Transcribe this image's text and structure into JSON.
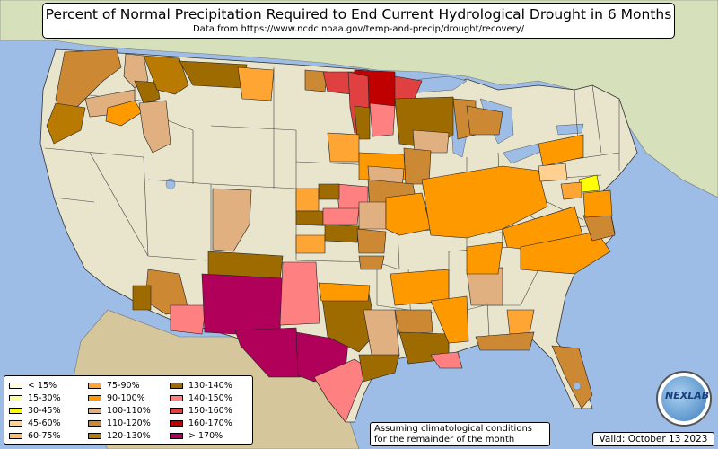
{
  "title": "Percent of Normal Precipitation Required to End Current Hydrological Drought in 6 Months",
  "subtitle": "Data from https://www.ncdc.noaa.gov/temp-and-precip/drought/recovery/",
  "legend": [
    {
      "label": "< 15%",
      "color": "#ffffe0"
    },
    {
      "label": "15-30%",
      "color": "#ffffa0"
    },
    {
      "label": "30-45%",
      "color": "#ffff00"
    },
    {
      "label": "45-60%",
      "color": "#ffd090"
    },
    {
      "label": "60-75%",
      "color": "#ffbf66"
    },
    {
      "label": "75-90%",
      "color": "#ffa533"
    },
    {
      "label": "90-100%",
      "color": "#ff9900"
    },
    {
      "label": "100-110%",
      "color": "#e0b080"
    },
    {
      "label": "110-120%",
      "color": "#cc8833"
    },
    {
      "label": "120-130%",
      "color": "#b87a00"
    },
    {
      "label": "130-140%",
      "color": "#9e6b00"
    },
    {
      "label": "140-150%",
      "color": "#ff8080"
    },
    {
      "label": "150-160%",
      "color": "#e04040"
    },
    {
      "label": "160-170%",
      "color": "#c00000"
    },
    {
      "label": "> 170%",
      "color": "#b0005a"
    }
  ],
  "note": [
    "Assuming climatological conditions",
    "for the remainder of the month"
  ],
  "valid": "Valid: October 13 2023",
  "logo_text": "NEXLAB",
  "colors": {
    "ocean": "#9dbde6",
    "land": "#e8e2c8",
    "canada": "#d9e3c0",
    "mexico": "#d8c9a0"
  }
}
